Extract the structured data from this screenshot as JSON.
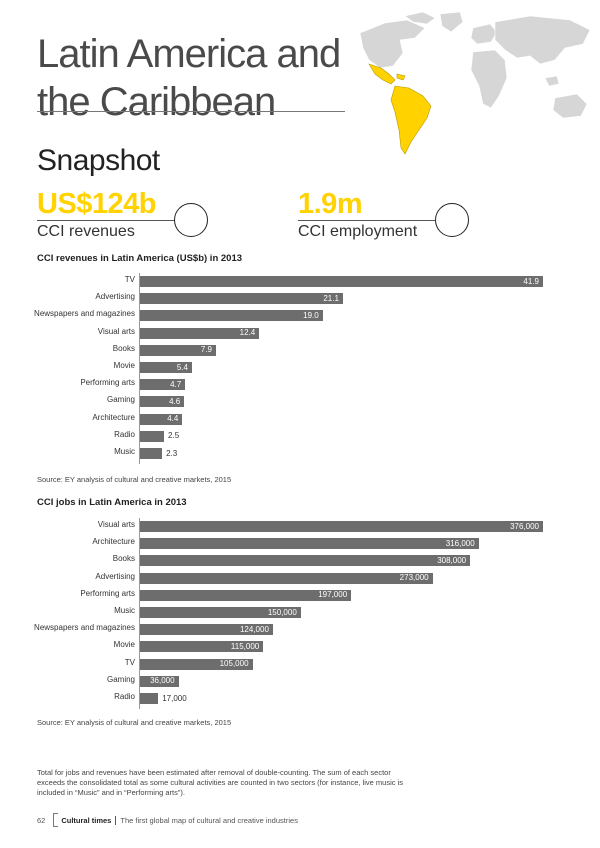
{
  "page": {
    "title_line1": "Latin America and",
    "title_line2": "the Caribbean",
    "snapshot": "Snapshot"
  },
  "stats": [
    {
      "value": "US$124b",
      "label": "CCI revenues"
    },
    {
      "value": "1.9m",
      "label": "CCI employment"
    }
  ],
  "chart_data": [
    {
      "type": "bar",
      "orientation": "horizontal",
      "title": "CCI revenues in Latin America (US$b) in 2013",
      "categories": [
        "TV",
        "Advertising",
        "Newspapers and magazines",
        "Visual arts",
        "Books",
        "Movie",
        "Performing arts",
        "Gaming",
        "Architecture",
        "Radio",
        "Music"
      ],
      "values": [
        41.9,
        21.1,
        19.0,
        12.4,
        7.9,
        5.4,
        4.7,
        4.6,
        4.4,
        2.5,
        2.3
      ],
      "labels": [
        "41.9",
        "21.1",
        "19.0",
        "12.4",
        "7.9",
        "5.4",
        "4.7",
        "4.6",
        "4.4",
        "2.5",
        "2.3"
      ],
      "xlim": [
        0,
        41.9
      ],
      "color": "#6d6d6d",
      "source": "Source: EY analysis of cultural and creative markets, 2015"
    },
    {
      "type": "bar",
      "orientation": "horizontal",
      "title": "CCI jobs in Latin America in 2013",
      "categories": [
        "Visual arts",
        "Architecture",
        "Books",
        "Advertising",
        "Performing arts",
        "Music",
        "Newspapers and magazines",
        "Movie",
        "TV",
        "Gaming",
        "Radio"
      ],
      "values": [
        376000,
        316000,
        308000,
        273000,
        197000,
        150000,
        124000,
        115000,
        105000,
        36000,
        17000
      ],
      "labels": [
        "376,000",
        "316,000",
        "308,000",
        "273,000",
        "197,000",
        "150,000",
        "124,000",
        "115,000",
        "105,000",
        "36,000",
        "17,000"
      ],
      "xlim": [
        0,
        376000
      ],
      "color": "#6d6d6d",
      "source": "Source: EY analysis of cultural and creative markets, 2015"
    }
  ],
  "note": "Total for jobs and revenues have been estimated after removal of double-counting. The sum of each sector exceeds the consolidated total as some cultural activities are counted in two sectors (for instance, live music is included in “Music” and in “Performing arts”).",
  "footer": {
    "page_number": "62",
    "publication": "Cultural times",
    "subtitle": "The first global map of cultural and creative industries"
  },
  "colors": {
    "accent": "#ffd200",
    "bar": "#6d6d6d",
    "map": "#d4d4d4"
  },
  "icons": {
    "map": "world-map-icon"
  }
}
